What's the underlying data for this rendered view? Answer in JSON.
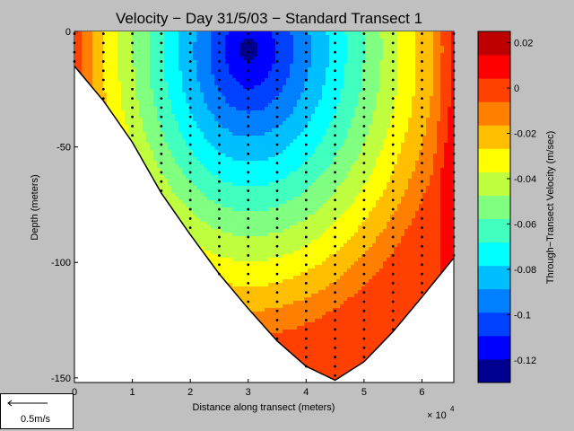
{
  "chart_data": {
    "type": "heatmap",
    "title": "Velocity − Day 31/5/03 − Standard Transect 1",
    "xlabel": "Distance along transect (meters)",
    "ylabel": "Depth (meters)",
    "x_multiplier": "× 10",
    "x_multiplier_exp": "4",
    "xlim": [
      0,
      65500
    ],
    "ylim": [
      -152,
      0
    ],
    "xticks": [
      "0",
      "1",
      "2",
      "3",
      "4",
      "5",
      "6"
    ],
    "yticks": [
      "0",
      "-50",
      "-100",
      "-150"
    ],
    "bottom_profile": {
      "x": [
        0,
        5000,
        10000,
        15000,
        20000,
        25000,
        30000,
        35000,
        40000,
        45000,
        50000,
        55000,
        60000,
        65500
      ],
      "depth": [
        -15,
        -30,
        -48,
        -70,
        -88,
        -105,
        -120,
        -134,
        -145,
        -151,
        -143,
        -130,
        -115,
        -98
      ]
    },
    "profile_columns_x": [
      0,
      5000,
      10000,
      15000,
      20000,
      25000,
      30000,
      35000,
      40000,
      45000,
      50000,
      55000,
      60000,
      65500
    ],
    "velocity_field": {
      "core_x": 30000,
      "core_depth": -8,
      "core_velocity": -0.125,
      "edge_velocity": 0.0
    },
    "colorbar": {
      "label": "Through−Transect Velocity (m/sec)",
      "range": [
        -0.13,
        0.025
      ],
      "ticks": [
        "0.02",
        "0",
        "-0.02",
        "-0.04",
        "-0.06",
        "-0.08",
        "-0.1",
        "-0.12"
      ],
      "tick_values": [
        0.02,
        0,
        -0.02,
        -0.04,
        -0.06,
        -0.08,
        -0.1,
        -0.12
      ],
      "colors": [
        "#00008f",
        "#0000ff",
        "#0040ff",
        "#0080ff",
        "#00bfff",
        "#00ffff",
        "#40ffbf",
        "#80ff80",
        "#bfff40",
        "#ffff00",
        "#ffbf00",
        "#ff8000",
        "#ff4000",
        "#ff0000",
        "#bf0000"
      ]
    },
    "scale_arrow_label": "0.5m/s"
  }
}
